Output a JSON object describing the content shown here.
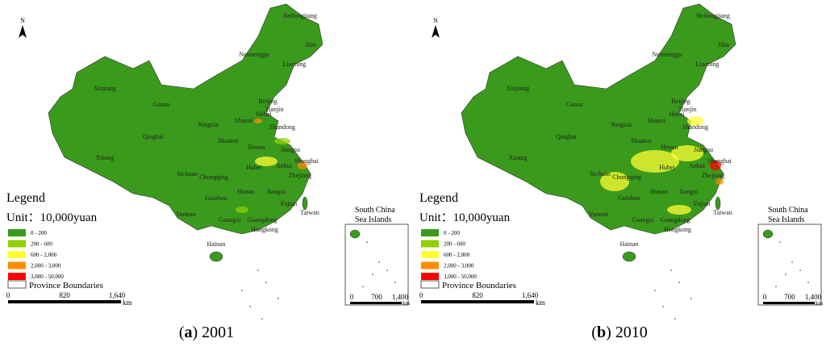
{
  "provinces": [
    "Heilongjiang",
    "Jilin",
    "Liaoning",
    "Neimenggu",
    "Xinjiang",
    "Gansu",
    "Beijing",
    "Tianjin",
    "Hebei",
    "Ningxia",
    "Shanxi",
    "Shandong",
    "Qinghai",
    "Shaanxi",
    "Henan",
    "Jiangsu",
    "Shanghai",
    "Xizang",
    "Anhui",
    "Hubei",
    "Sichuan",
    "Chongqing",
    "Zhejiang",
    "Hunan",
    "Jiangxi",
    "Guizhou",
    "Fujian",
    "Yunnan",
    "Guangxi",
    "Guangdong",
    "Taiwan",
    "Hongkong",
    "Hainan"
  ],
  "north": "N",
  "legend": {
    "title": "Legend",
    "unit": "Unit：10,000yuan",
    "items": [
      {
        "label": "0 - 200",
        "color": "#3a9a1c"
      },
      {
        "label": "200 - 600",
        "color": "#8fd000"
      },
      {
        "label": "600 - 2,000",
        "color": "#ffff33"
      },
      {
        "label": "2,000 - 3,000",
        "color": "#ff8c00"
      },
      {
        "label": "3,000 - 50,000",
        "color": "#ff0000"
      }
    ],
    "boundary": "Province Boundaries"
  },
  "scale": {
    "ticks": [
      "0",
      "820",
      "1,640"
    ],
    "unit": "km"
  },
  "inset": {
    "title": [
      "South China",
      "Sea Islands"
    ],
    "ticks": [
      "0",
      "700",
      "1,400"
    ],
    "unit": "km"
  },
  "panels": [
    {
      "caption": [
        "(",
        "a",
        ") 2001"
      ]
    },
    {
      "caption": [
        "(",
        "b",
        ") 2010"
      ]
    }
  ]
}
